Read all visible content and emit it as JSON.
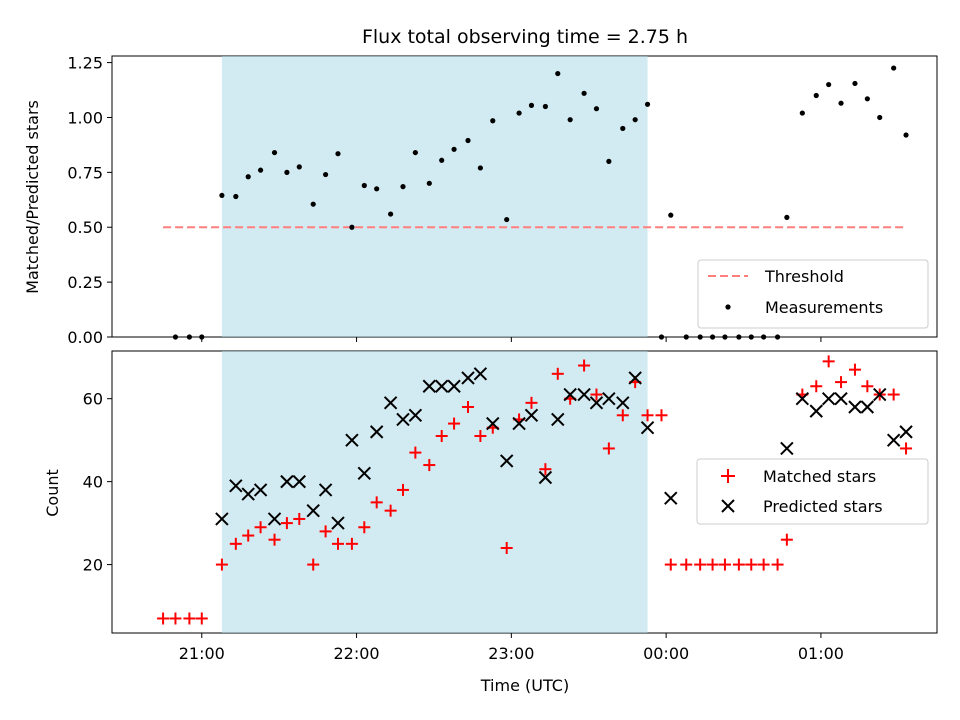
{
  "chart_data": [
    {
      "type": "scatter",
      "title": "Flux total observing time = 2.75 h",
      "xlabel": "",
      "ylabel": "Matched/Predicted stars",
      "ylim": [
        0,
        1.28
      ],
      "yticks": [
        "0.00",
        "0.25",
        "0.50",
        "0.75",
        "1.00",
        "1.25"
      ],
      "ytick_values": [
        0,
        0.25,
        0.5,
        0.75,
        1.0,
        1.25
      ],
      "shaded_x_range_hours": [
        21.13,
        23.88
      ],
      "shade_color": "#add8e6",
      "threshold": {
        "name": "Threshold",
        "value": 0.5,
        "x_range_hours": [
          20.75,
          25.55
        ],
        "color": "#ff7f7f"
      },
      "series": [
        {
          "name": "Measurements",
          "marker": "dot",
          "color": "#000000",
          "points": [
            [
              20.83,
              0
            ],
            [
              20.92,
              0
            ],
            [
              21.0,
              0
            ],
            [
              21.13,
              0.645
            ],
            [
              21.22,
              0.64
            ],
            [
              21.3,
              0.73
            ],
            [
              21.38,
              0.76
            ],
            [
              21.47,
              0.84
            ],
            [
              21.55,
              0.75
            ],
            [
              21.63,
              0.775
            ],
            [
              21.72,
              0.605
            ],
            [
              21.8,
              0.74
            ],
            [
              21.88,
              0.835
            ],
            [
              21.97,
              0.5
            ],
            [
              22.05,
              0.69
            ],
            [
              22.13,
              0.675
            ],
            [
              22.22,
              0.56
            ],
            [
              22.3,
              0.685
            ],
            [
              22.38,
              0.84
            ],
            [
              22.47,
              0.7
            ],
            [
              22.55,
              0.805
            ],
            [
              22.63,
              0.855
            ],
            [
              22.72,
              0.895
            ],
            [
              22.8,
              0.77
            ],
            [
              22.88,
              0.985
            ],
            [
              22.97,
              0.535
            ],
            [
              23.05,
              1.02
            ],
            [
              23.13,
              1.055
            ],
            [
              23.22,
              1.05
            ],
            [
              23.3,
              1.2
            ],
            [
              23.38,
              0.99
            ],
            [
              23.47,
              1.11
            ],
            [
              23.55,
              1.04
            ],
            [
              23.63,
              0.8
            ],
            [
              23.72,
              0.95
            ],
            [
              23.8,
              0.99
            ],
            [
              23.88,
              1.06
            ],
            [
              23.97,
              0
            ],
            [
              24.03,
              0.555
            ],
            [
              24.13,
              0
            ],
            [
              24.22,
              0
            ],
            [
              24.3,
              0
            ],
            [
              24.38,
              0
            ],
            [
              24.47,
              0
            ],
            [
              24.55,
              0
            ],
            [
              24.63,
              0
            ],
            [
              24.72,
              0
            ],
            [
              24.78,
              0.545
            ],
            [
              24.88,
              1.02
            ],
            [
              24.97,
              1.1
            ],
            [
              25.05,
              1.15
            ],
            [
              25.13,
              1.065
            ],
            [
              25.22,
              1.155
            ],
            [
              25.3,
              1.085
            ],
            [
              25.38,
              1.0
            ],
            [
              25.47,
              1.225
            ],
            [
              25.55,
              0.92
            ]
          ]
        }
      ],
      "legend": {
        "position": "lower-right",
        "entries": [
          "Threshold",
          "Measurements"
        ]
      }
    },
    {
      "type": "scatter",
      "title": "",
      "xlabel": "Time (UTC)",
      "ylabel": "Count",
      "ylim": [
        3.5,
        71.5
      ],
      "yticks": [
        "20",
        "40",
        "60"
      ],
      "ytick_values": [
        20,
        40,
        60
      ],
      "xlim_hours": [
        20.42,
        25.75
      ],
      "xticks": [
        "21:00",
        "22:00",
        "23:00",
        "00:00",
        "01:00"
      ],
      "xtick_values_hours": [
        21,
        22,
        23,
        24,
        25
      ],
      "shaded_x_range_hours": [
        21.13,
        23.88
      ],
      "shade_color": "#add8e6",
      "series": [
        {
          "name": "Matched stars",
          "marker": "plus",
          "color": "#ff0000",
          "points": [
            [
              20.75,
              7
            ],
            [
              20.83,
              7
            ],
            [
              20.92,
              7
            ],
            [
              21.0,
              7
            ],
            [
              21.13,
              20
            ],
            [
              21.22,
              25
            ],
            [
              21.3,
              27
            ],
            [
              21.38,
              29
            ],
            [
              21.47,
              26
            ],
            [
              21.55,
              30
            ],
            [
              21.63,
              31
            ],
            [
              21.72,
              20
            ],
            [
              21.8,
              28
            ],
            [
              21.88,
              25
            ],
            [
              21.97,
              25
            ],
            [
              22.05,
              29
            ],
            [
              22.13,
              35
            ],
            [
              22.22,
              33
            ],
            [
              22.3,
              38
            ],
            [
              22.38,
              47
            ],
            [
              22.47,
              44
            ],
            [
              22.55,
              51
            ],
            [
              22.63,
              54
            ],
            [
              22.72,
              58
            ],
            [
              22.8,
              51
            ],
            [
              22.88,
              53
            ],
            [
              22.97,
              24
            ],
            [
              23.05,
              55
            ],
            [
              23.13,
              59
            ],
            [
              23.22,
              43
            ],
            [
              23.3,
              66
            ],
            [
              23.38,
              60
            ],
            [
              23.47,
              68
            ],
            [
              23.55,
              61
            ],
            [
              23.63,
              48
            ],
            [
              23.72,
              56
            ],
            [
              23.8,
              64
            ],
            [
              23.88,
              56
            ],
            [
              23.97,
              56
            ],
            [
              24.03,
              20
            ],
            [
              24.13,
              20
            ],
            [
              24.22,
              20
            ],
            [
              24.3,
              20
            ],
            [
              24.38,
              20
            ],
            [
              24.47,
              20
            ],
            [
              24.55,
              20
            ],
            [
              24.63,
              20
            ],
            [
              24.72,
              20
            ],
            [
              24.78,
              26
            ],
            [
              24.88,
              61
            ],
            [
              24.97,
              63
            ],
            [
              25.05,
              69
            ],
            [
              25.13,
              64
            ],
            [
              25.22,
              67
            ],
            [
              25.3,
              63
            ],
            [
              25.38,
              61
            ],
            [
              25.47,
              61
            ],
            [
              25.55,
              48
            ]
          ]
        },
        {
          "name": "Predicted stars",
          "marker": "x",
          "color": "#000000",
          "points": [
            [
              21.13,
              31
            ],
            [
              21.22,
              39
            ],
            [
              21.3,
              37
            ],
            [
              21.38,
              38
            ],
            [
              21.47,
              31
            ],
            [
              21.55,
              40
            ],
            [
              21.63,
              40
            ],
            [
              21.72,
              33
            ],
            [
              21.8,
              38
            ],
            [
              21.88,
              30
            ],
            [
              21.97,
              50
            ],
            [
              22.05,
              42
            ],
            [
              22.13,
              52
            ],
            [
              22.22,
              59
            ],
            [
              22.3,
              55
            ],
            [
              22.38,
              56
            ],
            [
              22.47,
              63
            ],
            [
              22.55,
              63
            ],
            [
              22.63,
              63
            ],
            [
              22.72,
              65
            ],
            [
              22.8,
              66
            ],
            [
              22.88,
              54
            ],
            [
              22.97,
              45
            ],
            [
              23.05,
              54
            ],
            [
              23.13,
              56
            ],
            [
              23.22,
              41
            ],
            [
              23.3,
              55
            ],
            [
              23.38,
              61
            ],
            [
              23.47,
              61
            ],
            [
              23.55,
              59
            ],
            [
              23.63,
              60
            ],
            [
              23.72,
              59
            ],
            [
              23.8,
              65
            ],
            [
              23.88,
              53
            ],
            [
              24.03,
              36
            ],
            [
              24.78,
              48
            ],
            [
              24.88,
              60
            ],
            [
              24.97,
              57
            ],
            [
              25.05,
              60
            ],
            [
              25.13,
              60
            ],
            [
              25.22,
              58
            ],
            [
              25.3,
              58
            ],
            [
              25.38,
              61
            ],
            [
              25.47,
              50
            ],
            [
              25.55,
              52
            ]
          ]
        }
      ],
      "legend": {
        "position": "center-right",
        "entries": [
          "Matched stars",
          "Predicted stars"
        ]
      }
    }
  ]
}
